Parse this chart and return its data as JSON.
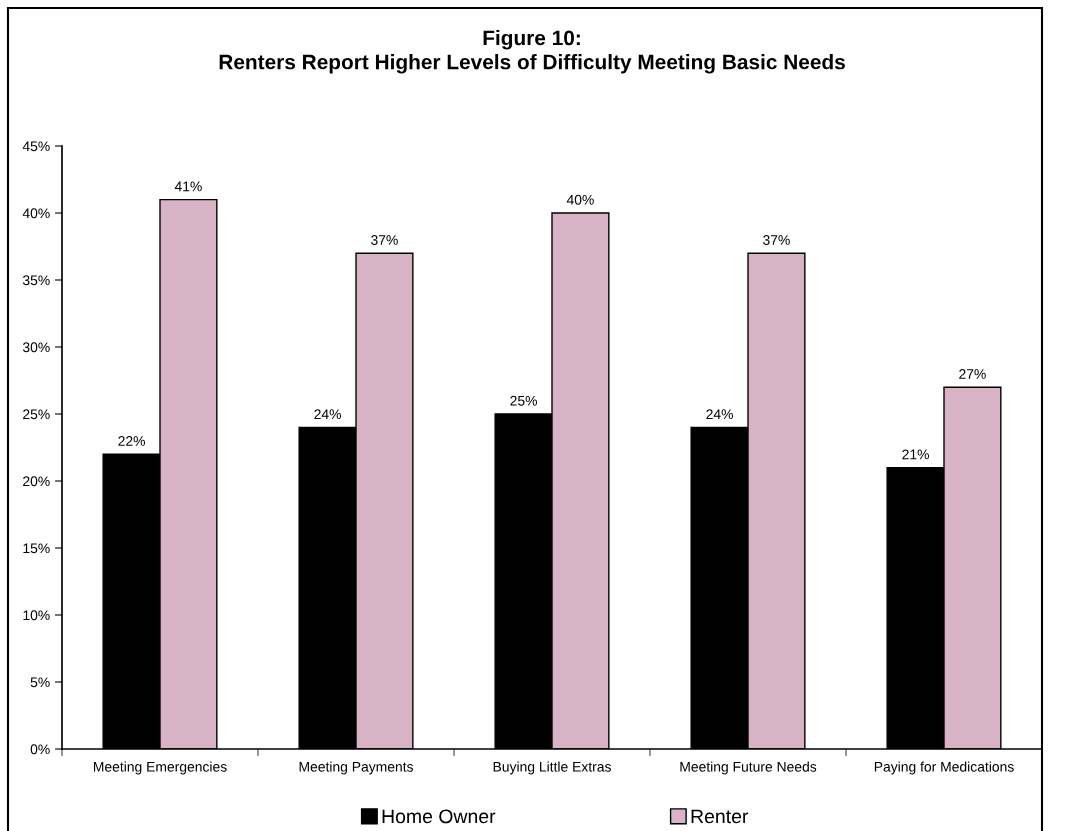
{
  "chart_data": {
    "type": "bar",
    "title": "Figure 10:\nRenters Report Higher Levels of Difficulty Meeting Basic Needs",
    "categories": [
      "Meeting Emergencies",
      "Meeting Payments",
      "Buying Little Extras",
      "Meeting Future Needs",
      "Paying for Medications"
    ],
    "series": [
      {
        "name": "Home Owner",
        "color": "#000000",
        "values": [
          22,
          24,
          25,
          24,
          21
        ],
        "value_labels": [
          "22%",
          "24%",
          "25%",
          "24%",
          "21%"
        ]
      },
      {
        "name": "Renter",
        "color": "#d8b3c6",
        "values": [
          41,
          37,
          40,
          37,
          27
        ],
        "value_labels": [
          "41%",
          "37%",
          "40%",
          "37%",
          "27%"
        ]
      }
    ],
    "ylim": [
      0,
      45
    ],
    "yticks": [
      {
        "value": 0,
        "label": "0%"
      },
      {
        "value": 5,
        "label": "5%"
      },
      {
        "value": 10,
        "label": "10%"
      },
      {
        "value": 15,
        "label": "15%"
      },
      {
        "value": 20,
        "label": "20%"
      },
      {
        "value": 25,
        "label": "25%"
      },
      {
        "value": 30,
        "label": "30%"
      },
      {
        "value": 35,
        "label": "35%"
      },
      {
        "value": 40,
        "label": "40%"
      },
      {
        "value": 45,
        "label": "45%"
      }
    ],
    "legend": "bottom"
  }
}
